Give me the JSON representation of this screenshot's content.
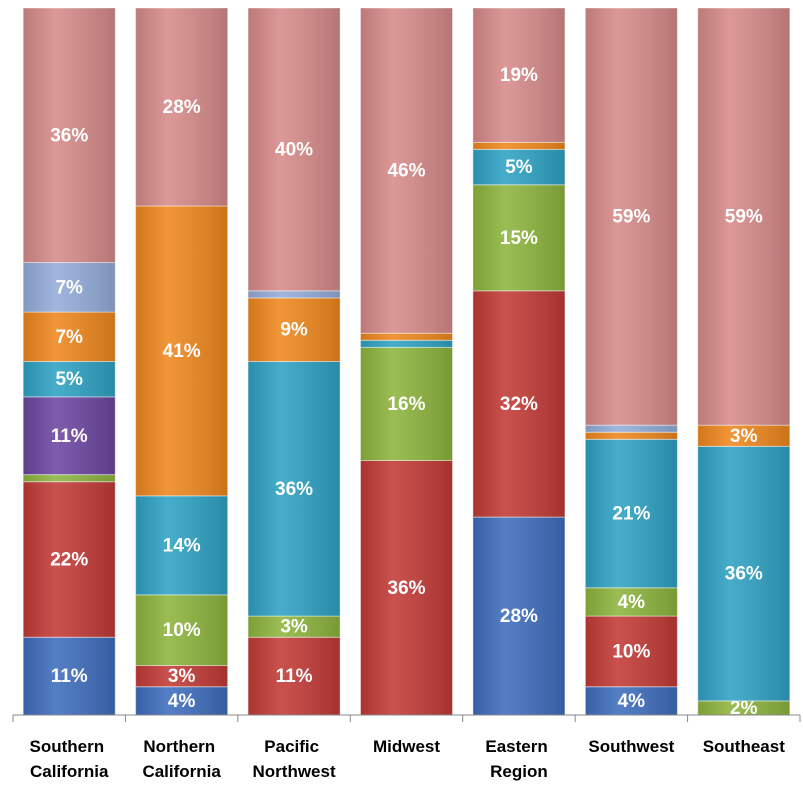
{
  "chart_data": {
    "type": "stacked_bar",
    "categories": [
      "Southern California",
      "Northern California",
      "Pacific Northwest",
      "Midwest",
      "Eastern Region",
      "Southwest",
      "Southeast"
    ],
    "ylim": [
      0,
      100
    ],
    "series": [
      {
        "color": "#3e6dbd",
        "values": [
          11,
          4,
          0,
          0,
          28,
          4,
          0
        ],
        "value_labels": [
          "11%",
          "4%",
          null,
          null,
          "28%",
          "4%",
          null
        ]
      },
      {
        "color": "#c23a36",
        "values": [
          22,
          3,
          11,
          36,
          32,
          10,
          0
        ],
        "value_labels": [
          "22%",
          "3%",
          "11%",
          "36%",
          "32%",
          "10%",
          null
        ]
      },
      {
        "color": "#8db43d",
        "values": [
          1,
          10,
          3,
          16,
          15,
          4,
          2
        ],
        "value_labels": [
          null,
          "10%",
          "3%",
          "16%",
          "15%",
          "4%",
          "2%"
        ]
      },
      {
        "color": "#6c46a0",
        "values": [
          11,
          0,
          0,
          0,
          0,
          0,
          0
        ],
        "value_labels": [
          "11%",
          null,
          null,
          null,
          null,
          null,
          null
        ]
      },
      {
        "color": "#2ea2c3",
        "values": [
          5,
          14,
          36,
          1,
          5,
          21,
          36
        ],
        "value_labels": [
          "5%",
          "14%",
          "36%",
          null,
          "5%",
          "21%",
          "36%"
        ]
      },
      {
        "color": "#ef871d",
        "values": [
          7,
          41,
          9,
          1,
          1,
          1,
          3
        ],
        "value_labels": [
          "7%",
          "41%",
          "9%",
          null,
          null,
          null,
          "3%"
        ]
      },
      {
        "color": "#93acd9",
        "values": [
          7,
          0,
          1,
          0,
          0,
          1,
          0
        ],
        "value_labels": [
          "7%",
          null,
          null,
          null,
          null,
          null,
          null
        ]
      },
      {
        "color": "#d68a89",
        "values": [
          36,
          28,
          40,
          46,
          19,
          59,
          59
        ],
        "value_labels": [
          "36%",
          "28%",
          "40%",
          "46%",
          "19%",
          "59%",
          "59%"
        ]
      }
    ]
  }
}
